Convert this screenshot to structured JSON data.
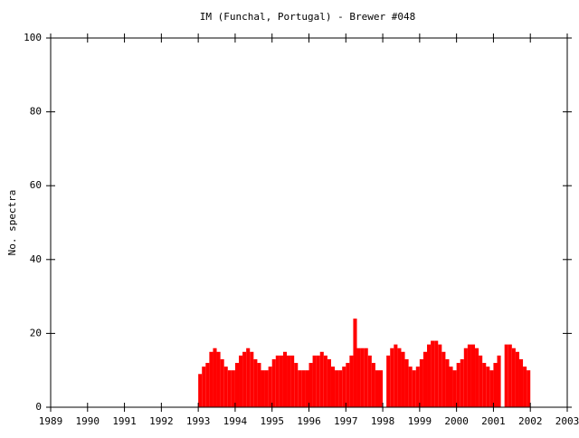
{
  "chart_data": {
    "type": "histogram",
    "title": "IM (Funchal, Portugal) - Brewer #048",
    "y_label": "No. spectra",
    "color": "#ff0000",
    "bins": [
      1993.0,
      1993.1,
      1993.2,
      1993.3,
      1993.4,
      1993.5,
      1993.6,
      1993.7,
      1993.8,
      1993.9,
      1994.0,
      1994.1,
      1994.2,
      1994.3,
      1994.4,
      1994.5,
      1994.6,
      1994.7,
      1994.8,
      1994.9,
      1995.0,
      1995.1,
      1995.2,
      1995.3,
      1995.4,
      1995.5,
      1995.6,
      1995.7,
      1995.8,
      1995.9,
      1996.0,
      1996.1,
      1996.2,
      1996.3,
      1996.4,
      1996.5,
      1996.6,
      1996.7,
      1996.8,
      1996.9,
      1997.0,
      1997.1,
      1997.2,
      1997.3,
      1997.4,
      1997.5,
      1997.6,
      1997.7,
      1997.8,
      1997.9,
      1998.0,
      1998.1,
      1998.2,
      1998.3,
      1998.4,
      1998.5,
      1998.6,
      1998.7,
      1998.8,
      1998.9,
      1999.0,
      1999.1,
      1999.2,
      1999.3,
      1999.4,
      1999.5,
      1999.6,
      1999.7,
      1999.8,
      1999.9,
      2000.0,
      2000.1,
      2000.2,
      2000.3,
      2000.4,
      2000.5,
      2000.6,
      2000.7,
      2000.8,
      2000.9,
      2001.0,
      2001.1,
      2001.2,
      2001.3,
      2001.4,
      2001.5,
      2001.6,
      2001.7,
      2001.8,
      2001.9,
      2002.0
    ],
    "values": [
      9,
      11,
      12,
      15,
      16,
      15,
      13,
      11,
      10,
      10,
      12,
      14,
      15,
      16,
      15,
      13,
      12,
      10,
      10,
      11,
      13,
      14,
      14,
      15,
      14,
      14,
      12,
      10,
      10,
      10,
      12,
      14,
      14,
      15,
      14,
      13,
      11,
      10,
      10,
      11,
      12,
      14,
      24,
      16,
      16,
      16,
      14,
      12,
      10,
      10,
      0,
      14,
      16,
      17,
      16,
      15,
      13,
      11,
      10,
      11,
      13,
      15,
      17,
      18,
      18,
      17,
      15,
      13,
      11,
      10,
      12,
      13,
      16,
      17,
      17,
      16,
      14,
      12,
      11,
      10,
      12,
      14,
      0,
      17,
      17,
      16,
      15,
      13,
      11,
      10
    ],
    "xlim": [
      1989,
      2003
    ],
    "xticks": [
      1989,
      1990,
      1991,
      1992,
      1993,
      1994,
      1995,
      1996,
      1997,
      1998,
      1999,
      2000,
      2001,
      2002,
      2003
    ],
    "ylim": [
      0,
      100
    ],
    "yticks": [
      0,
      20,
      40,
      60,
      80,
      100
    ]
  }
}
